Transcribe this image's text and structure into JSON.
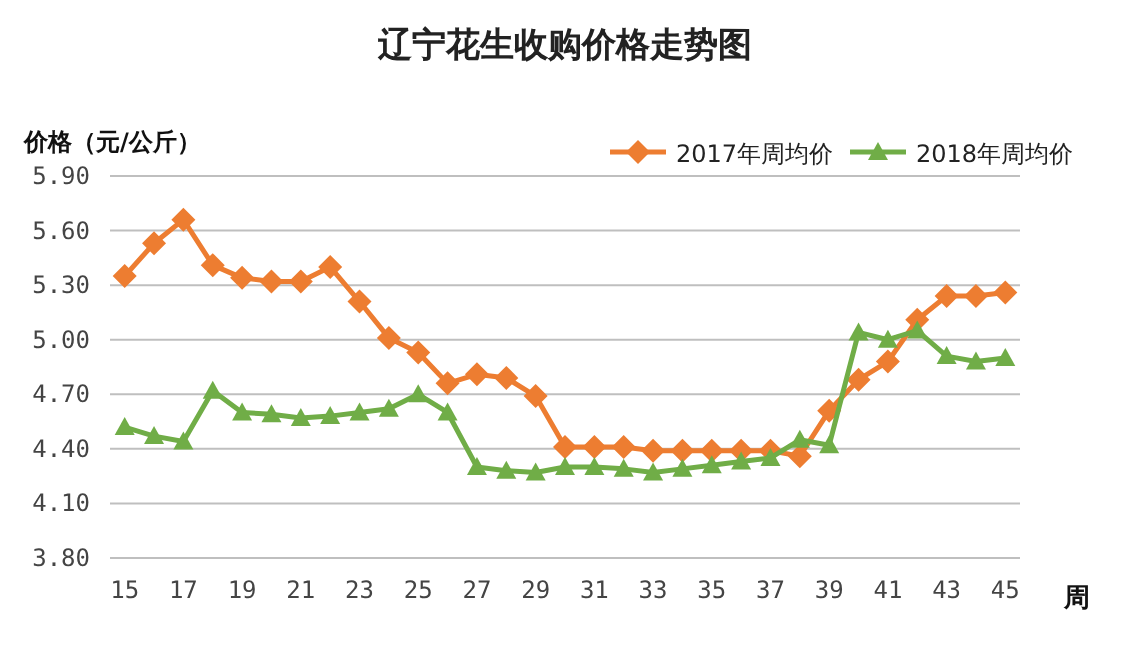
{
  "chart_data": {
    "type": "line",
    "title": "辽宁花生收购价格走势图",
    "ylabel": "价格（元/公斤）",
    "xlabel": "周",
    "categories": [
      "15",
      null,
      "17",
      null,
      "19",
      null,
      "21",
      null,
      "23",
      null,
      "25",
      null,
      "27",
      null,
      "29",
      null,
      "31",
      null,
      "33",
      null,
      "35",
      null,
      "37",
      null,
      "39",
      null,
      "41",
      null,
      "43",
      null,
      "45"
    ],
    "series": [
      {
        "name": "2017年周均价",
        "color": "#ed7d31",
        "marker": "diamond",
        "values": [
          5.35,
          5.53,
          5.66,
          5.41,
          5.34,
          5.32,
          5.32,
          5.4,
          5.21,
          5.01,
          4.93,
          4.76,
          4.81,
          4.79,
          4.69,
          4.41,
          4.41,
          4.41,
          4.39,
          4.39,
          4.39,
          4.39,
          4.39,
          4.36,
          4.61,
          4.78,
          4.88,
          5.11,
          5.24,
          5.24,
          5.26
        ]
      },
      {
        "name": "2018年周均价",
        "color": "#70ad47",
        "marker": "triangle",
        "values": [
          4.52,
          4.47,
          4.44,
          4.72,
          4.6,
          4.59,
          4.57,
          4.58,
          4.6,
          4.62,
          4.7,
          4.6,
          4.3,
          4.28,
          4.27,
          4.3,
          4.3,
          4.29,
          4.27,
          4.29,
          4.31,
          4.33,
          4.35,
          4.45,
          4.42,
          5.04,
          5.0,
          5.05,
          4.91,
          4.88,
          4.9
        ]
      }
    ],
    "ylim": [
      3.8,
      5.9
    ],
    "yticks": [
      {
        "value": 3.8,
        "label": "3.80"
      },
      {
        "value": 4.1,
        "label": "4.10"
      },
      {
        "value": 4.4,
        "label": "4.40"
      },
      {
        "value": 4.7,
        "label": "4.70"
      },
      {
        "value": 5.0,
        "label": "5.00"
      },
      {
        "value": 5.3,
        "label": "5.30"
      },
      {
        "value": 5.6,
        "label": "5.60"
      },
      {
        "value": 5.9,
        "label": "5.90"
      }
    ],
    "grid": "y",
    "legend": "top right",
    "line_style": "solid"
  }
}
